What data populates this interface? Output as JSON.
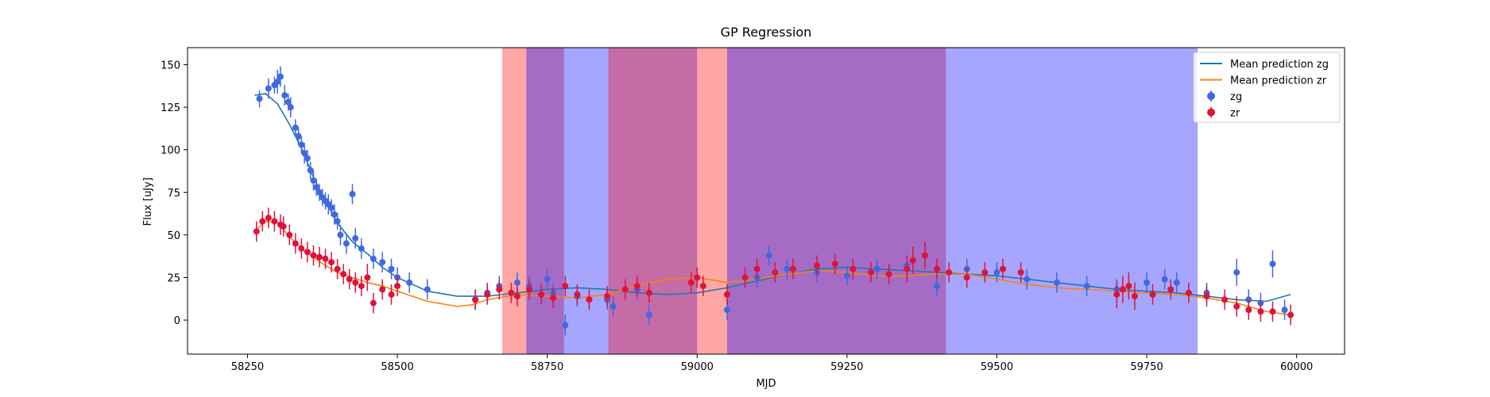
{
  "chart_data": {
    "type": "scatter",
    "title": "GP Regression",
    "xlabel": "MJD",
    "ylabel": "Flux [uJy]",
    "xlim": [
      58150,
      60080
    ],
    "ylim": [
      -20,
      160
    ],
    "xticks": [
      58250,
      58500,
      58750,
      59000,
      59250,
      59500,
      59750,
      60000
    ],
    "yticks": [
      0,
      25,
      50,
      75,
      100,
      125,
      150
    ],
    "grid": false,
    "legend_position": "top-right",
    "legend": [
      {
        "label": "Mean prediction zg",
        "kind": "line",
        "color": "#1f77b4"
      },
      {
        "label": "Mean prediction zr",
        "kind": "line",
        "color": "#ff7f0e"
      },
      {
        "label": "zg",
        "kind": "errorbar",
        "color": "#4169e1"
      },
      {
        "label": "zr",
        "kind": "errorbar",
        "color": "#dc143c"
      }
    ],
    "shaded_regions": [
      {
        "x0": 58675,
        "x1": 58778,
        "color": "#ff0000",
        "opacity": 0.35
      },
      {
        "x0": 58715,
        "x1": 59000,
        "color": "#0000ff",
        "opacity": 0.35
      },
      {
        "x0": 58852,
        "x1": 59415,
        "color": "#ff0000",
        "opacity": 0.35
      },
      {
        "x0": 59050,
        "x1": 59835,
        "color": "#0000ff",
        "opacity": 0.35
      }
    ],
    "series": [
      {
        "name": "Mean prediction zg",
        "kind": "line",
        "color": "#1f77b4",
        "x": [
          58262,
          58280,
          58300,
          58320,
          58340,
          58360,
          58380,
          58400,
          58425,
          58450,
          58475,
          58500,
          58550,
          58600,
          58650,
          58700,
          58750,
          58800,
          58850,
          58900,
          58950,
          59000,
          59050,
          59100,
          59150,
          59200,
          59250,
          59300,
          59350,
          59400,
          59450,
          59500,
          59550,
          59600,
          59650,
          59700,
          59750,
          59800,
          59850,
          59900,
          59950,
          59990
        ],
        "y": [
          132,
          133,
          127,
          115,
          101,
          84,
          70,
          57,
          46,
          39,
          31,
          25,
          17,
          14,
          14,
          16,
          18,
          19,
          18,
          16,
          15,
          16,
          19,
          23,
          27,
          30,
          31,
          30,
          29,
          28,
          27,
          26,
          24,
          22,
          20,
          18,
          17,
          16,
          14,
          12,
          11,
          15
        ]
      },
      {
        "name": "Mean prediction zr",
        "kind": "line",
        "color": "#ff7f0e",
        "x": [
          58262,
          58280,
          58300,
          58320,
          58340,
          58360,
          58380,
          58400,
          58425,
          58450,
          58475,
          58500,
          58550,
          58600,
          58625,
          58650,
          58700,
          58750,
          58800,
          58850,
          58900,
          58950,
          59000,
          59050,
          59100,
          59150,
          59200,
          59250,
          59300,
          59350,
          59400,
          59450,
          59500,
          59550,
          59600,
          59650,
          59700,
          59750,
          59800,
          59850,
          59900,
          59950,
          59990
        ],
        "y": [
          52,
          58,
          57,
          49,
          42,
          37,
          32,
          28,
          25,
          22,
          20,
          17,
          11,
          8,
          9,
          12,
          15,
          14,
          13,
          15,
          20,
          24,
          25,
          22,
          24,
          27,
          29,
          28,
          26,
          26,
          27,
          27,
          24,
          21,
          19,
          18,
          17,
          16,
          15,
          13,
          10,
          5,
          3
        ]
      },
      {
        "name": "zg",
        "kind": "scatter",
        "color": "#4169e1",
        "x": [
          58270,
          58285,
          58295,
          58300,
          58305,
          58312,
          58318,
          58322,
          58330,
          58335,
          58340,
          58345,
          58350,
          58355,
          58360,
          58365,
          58370,
          58375,
          58380,
          58385,
          58390,
          58395,
          58400,
          58405,
          58415,
          58425,
          58430,
          58440,
          58460,
          58475,
          58490,
          58500,
          58520,
          58550,
          58630,
          58650,
          58670,
          58700,
          58720,
          58750,
          58760,
          58780,
          58800,
          58850,
          58860,
          58900,
          58920,
          59050,
          59100,
          59120,
          59150,
          59200,
          59250,
          59300,
          59350,
          59400,
          59450,
          59500,
          59550,
          59600,
          59650,
          59700,
          59750,
          59780,
          59800,
          59850,
          59900,
          59920,
          59940,
          59960,
          59980
        ],
        "y": [
          130,
          136,
          138,
          140,
          143,
          132,
          128,
          125,
          113,
          108,
          103,
          98,
          95,
          88,
          82,
          78,
          75,
          72,
          70,
          68,
          66,
          62,
          58,
          50,
          45,
          74,
          48,
          42,
          36,
          34,
          30,
          25,
          22,
          18,
          12,
          16,
          20,
          22,
          20,
          24,
          16,
          -3,
          14,
          12,
          8,
          18,
          3,
          6,
          25,
          38,
          30,
          28,
          26,
          30,
          32,
          20,
          30,
          28,
          24,
          22,
          20,
          18,
          22,
          24,
          22,
          16,
          28,
          12,
          10,
          33,
          6
        ],
        "err": [
          5,
          6,
          5,
          7,
          6,
          6,
          5,
          6,
          5,
          5,
          5,
          6,
          5,
          5,
          6,
          5,
          5,
          5,
          5,
          6,
          5,
          6,
          5,
          6,
          6,
          6,
          6,
          6,
          6,
          6,
          6,
          6,
          6,
          6,
          6,
          6,
          6,
          6,
          6,
          6,
          6,
          6,
          6,
          6,
          6,
          6,
          6,
          6,
          6,
          6,
          6,
          6,
          6,
          6,
          6,
          6,
          6,
          6,
          6,
          6,
          6,
          6,
          6,
          6,
          6,
          6,
          8,
          6,
          6,
          8,
          6
        ]
      },
      {
        "name": "zr",
        "kind": "scatter",
        "color": "#dc143c",
        "x": [
          58265,
          58275,
          58285,
          58295,
          58305,
          58310,
          58320,
          58330,
          58340,
          58350,
          58360,
          58370,
          58380,
          58390,
          58400,
          58410,
          58420,
          58430,
          58440,
          58450,
          58460,
          58475,
          58490,
          58500,
          58630,
          58650,
          58670,
          58690,
          58700,
          58720,
          58740,
          58760,
          58780,
          58800,
          58820,
          58850,
          58880,
          58900,
          58920,
          58990,
          59000,
          59010,
          59050,
          59080,
          59100,
          59130,
          59160,
          59200,
          59230,
          59260,
          59290,
          59320,
          59350,
          59360,
          59380,
          59400,
          59420,
          59450,
          59480,
          59510,
          59540,
          59700,
          59710,
          59720,
          59730,
          59760,
          59790,
          59820,
          59850,
          59880,
          59900,
          59920,
          59940,
          59960,
          59990
        ],
        "y": [
          52,
          58,
          60,
          58,
          56,
          55,
          50,
          45,
          42,
          40,
          38,
          37,
          36,
          34,
          30,
          27,
          24,
          22,
          20,
          25,
          10,
          18,
          15,
          20,
          12,
          15,
          18,
          16,
          14,
          18,
          15,
          13,
          20,
          15,
          12,
          14,
          18,
          20,
          16,
          22,
          25,
          20,
          15,
          25,
          30,
          28,
          30,
          32,
          33,
          30,
          28,
          27,
          30,
          35,
          38,
          30,
          28,
          25,
          28,
          30,
          28,
          15,
          18,
          20,
          14,
          15,
          18,
          16,
          14,
          12,
          8,
          6,
          5,
          5,
          3
        ],
        "err": [
          6,
          6,
          6,
          6,
          6,
          6,
          6,
          6,
          6,
          6,
          6,
          6,
          6,
          6,
          6,
          6,
          6,
          6,
          6,
          8,
          6,
          6,
          6,
          6,
          6,
          6,
          6,
          6,
          6,
          6,
          6,
          6,
          6,
          6,
          6,
          6,
          6,
          6,
          6,
          6,
          6,
          6,
          6,
          6,
          6,
          6,
          6,
          6,
          6,
          6,
          6,
          6,
          8,
          8,
          8,
          6,
          6,
          6,
          6,
          6,
          6,
          8,
          8,
          8,
          8,
          6,
          6,
          6,
          6,
          6,
          6,
          6,
          6,
          6,
          6
        ]
      }
    ]
  }
}
